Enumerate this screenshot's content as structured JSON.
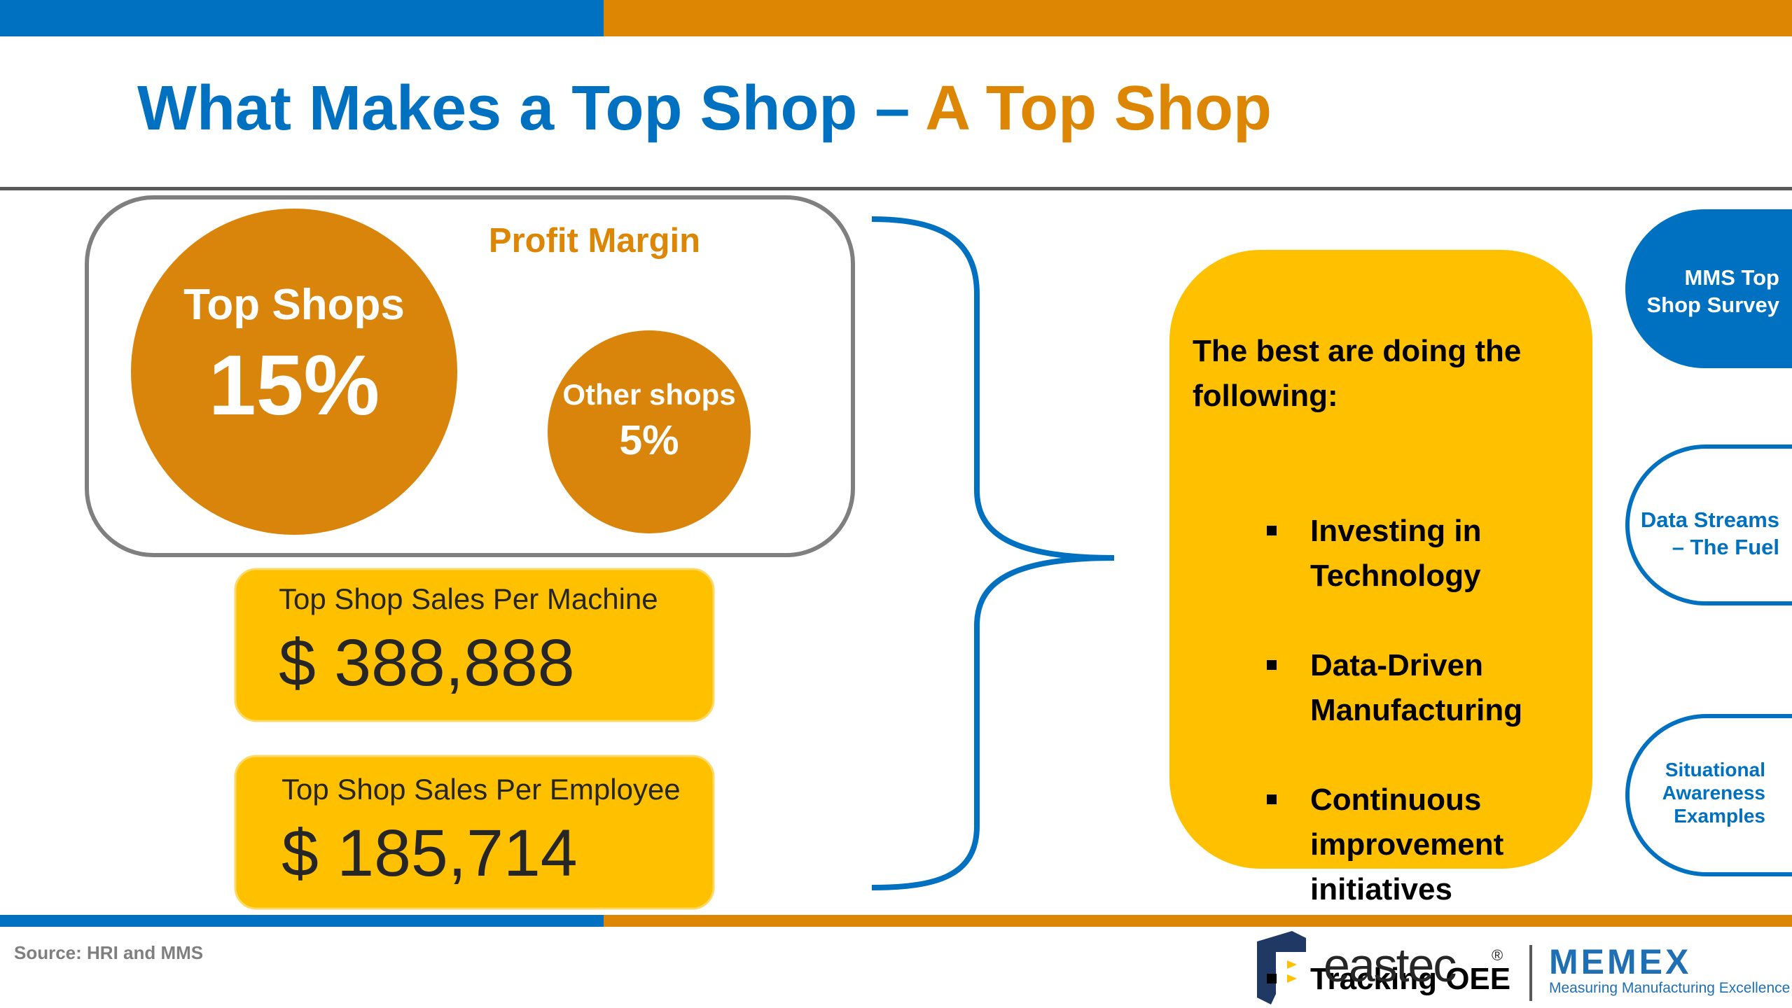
{
  "header": {
    "title_part1": "What Makes a Top Shop – ",
    "title_part2": "A Top Shop"
  },
  "profit_margin": {
    "title": "Profit Margin",
    "top_shops": {
      "label": "Top Shops",
      "value": "15%"
    },
    "other_shops": {
      "label": "Other shops",
      "value": "5%"
    }
  },
  "sales": [
    {
      "label": "Top Shop Sales Per Machine",
      "value": "$ 388,888"
    },
    {
      "label": "Top Shop Sales Per Employee",
      "value": "$ 185,714"
    }
  ],
  "best_practices": {
    "heading": "The best are doing the\nfollowing:",
    "items": [
      "Investing in\nTechnology",
      "Data-Driven\nManufacturing",
      "Continuous\nimprovement\ninitiatives",
      "Tracking OEE"
    ]
  },
  "side_tabs": [
    "MMS Top\nShop Survey",
    "Data Streams\n– The Fuel",
    "Situational\nAwareness\nExamples"
  ],
  "footer": {
    "source": "Source: HRI and MMS",
    "logo_eastec": "eastec",
    "logo_registered": "®",
    "logo_memex": "MEMEX",
    "logo_memex_tagline": "Measuring Manufacturing Excellence"
  }
}
